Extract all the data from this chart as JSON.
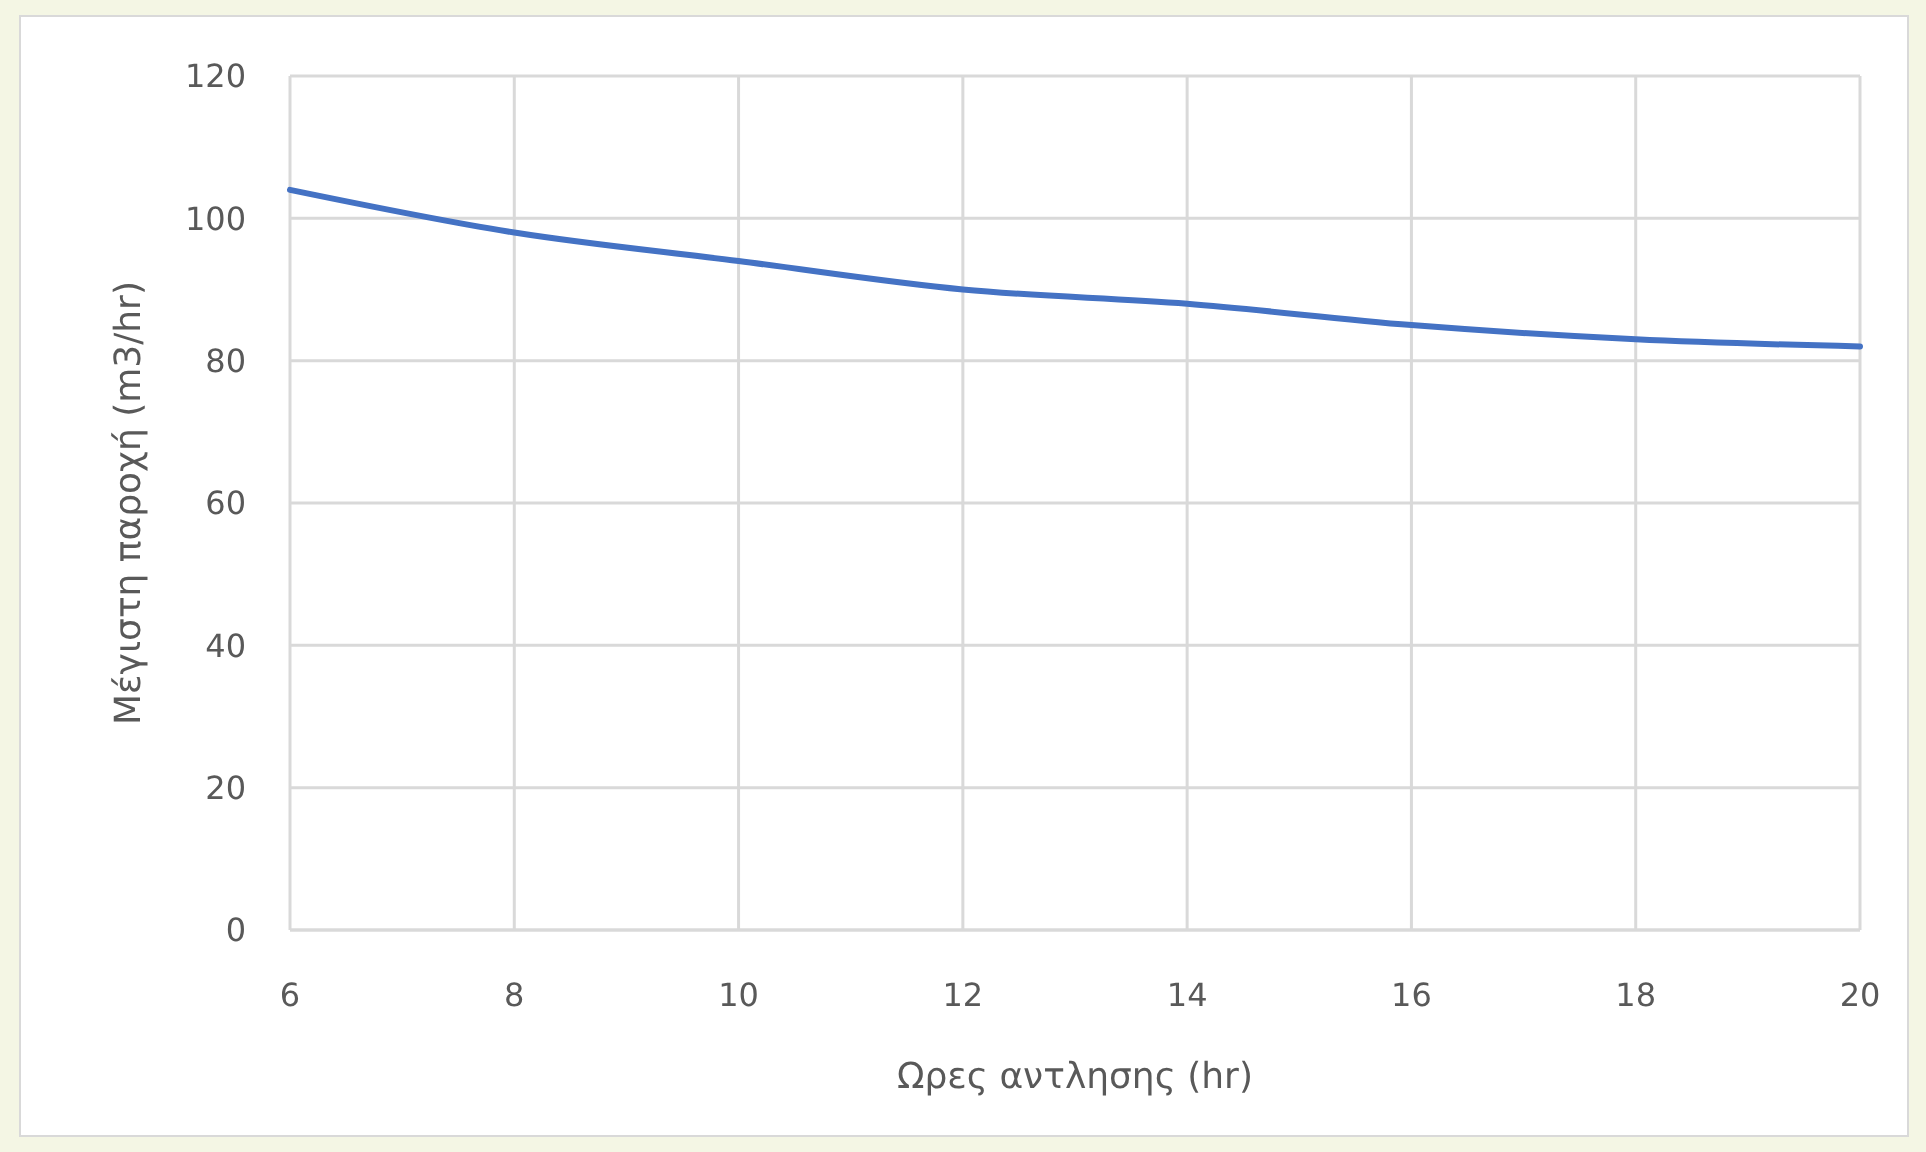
{
  "chart_data": {
    "type": "line",
    "xlabel": "Ωρες αντλησης (hr)",
    "ylabel": "Μέγιστη παροχή (m3/hr)",
    "x": [
      6,
      8,
      10,
      12,
      14,
      16,
      18,
      20
    ],
    "series": [
      {
        "color": "#4472c4",
        "values": [
          104,
          98,
          94,
          90,
          88,
          85,
          83,
          82
        ]
      }
    ],
    "xlim": [
      6,
      20
    ],
    "xticks": [
      6,
      8,
      10,
      12,
      14,
      16,
      18,
      20
    ],
    "ylim": [
      0,
      120
    ],
    "yticks": [
      0,
      20,
      40,
      60,
      80,
      100,
      120
    ],
    "grid": true
  }
}
